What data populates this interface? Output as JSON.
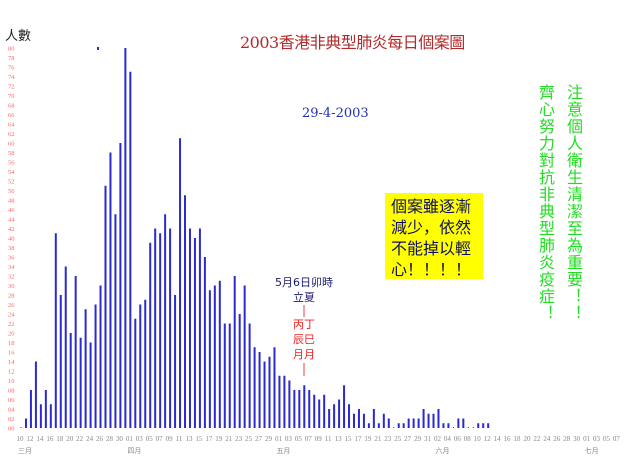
{
  "chart_data": {
    "type": "bar",
    "title": "2003香港非典型肺炎每日個案圖",
    "ylabel": "人數",
    "subtitle": "29-4-2003",
    "ylim": [
      0,
      80
    ],
    "yticks": [
      "00",
      "02",
      "04",
      "06",
      "08",
      "10",
      "12",
      "14",
      "16",
      "18",
      "20",
      "22",
      "24",
      "26",
      "28",
      "30",
      "32",
      "34",
      "36",
      "38",
      "40",
      "42",
      "44",
      "46",
      "48",
      "50",
      "52",
      "54",
      "56",
      "58",
      "60",
      "62",
      "64",
      "66",
      "68",
      "70",
      "72",
      "74",
      "76",
      "78",
      "80"
    ],
    "xticks": [
      "10",
      "12",
      "14",
      "16",
      "18",
      "20",
      "22",
      "24",
      "26",
      "28",
      "30",
      "01",
      "03",
      "05",
      "07",
      "09",
      "11",
      "13",
      "15",
      "17",
      "19",
      "21",
      "23",
      "25",
      "27",
      "29",
      "01",
      "03",
      "05",
      "07",
      "09",
      "11",
      "13",
      "15",
      "17",
      "19",
      "21",
      "23",
      "25",
      "27",
      "29",
      "31",
      "02",
      "04",
      "06",
      "08",
      "10",
      "12",
      "14",
      "16",
      "18",
      "20",
      "22",
      "24",
      "26",
      "28",
      "30",
      "01",
      "03",
      "05",
      "07"
    ],
    "months": [
      {
        "label": "三月",
        "tick": 0
      },
      {
        "label": "四月",
        "tick": 11
      },
      {
        "label": "五月",
        "tick": 26
      },
      {
        "label": "六月",
        "tick": 42
      },
      {
        "label": "七月",
        "tick": 57
      }
    ],
    "start_date": "03-10",
    "values": [
      0,
      2,
      8,
      14,
      5,
      8,
      5,
      41,
      28,
      34,
      20,
      32,
      19,
      25,
      18,
      26,
      30,
      51,
      58,
      45,
      60,
      80,
      75,
      23,
      26,
      27,
      39,
      42,
      41,
      45,
      42,
      28,
      61,
      49,
      42,
      40,
      42,
      36,
      29,
      30,
      31,
      22,
      22,
      32,
      24,
      30,
      22,
      17,
      16,
      14,
      15,
      17,
      11,
      11,
      10,
      8,
      8,
      9,
      8,
      7,
      6,
      7,
      4,
      5,
      6,
      9,
      5,
      3,
      4,
      3,
      1,
      4,
      1,
      3,
      2,
      0,
      1,
      1,
      2,
      2,
      2,
      4,
      3,
      3,
      4,
      1,
      1,
      0,
      2,
      2,
      0,
      0,
      1,
      1,
      1
    ],
    "bar_color": "#2a2ad0",
    "tick_color": "#ff6666"
  },
  "notice_box": [
    "個案雖逐漸",
    "減少，依然",
    "不能掉以輕",
    "心！！！！"
  ],
  "slogan_right": "注意個人衛生清潔至為重要！！",
  "slogan_left": "齊心努力對抗非典型肺炎疫症！",
  "annotation": {
    "line1": "5月6日卯時",
    "line2": "立夏",
    "line3": "丙丁",
    "line4": "辰巳",
    "line5": "月月"
  }
}
